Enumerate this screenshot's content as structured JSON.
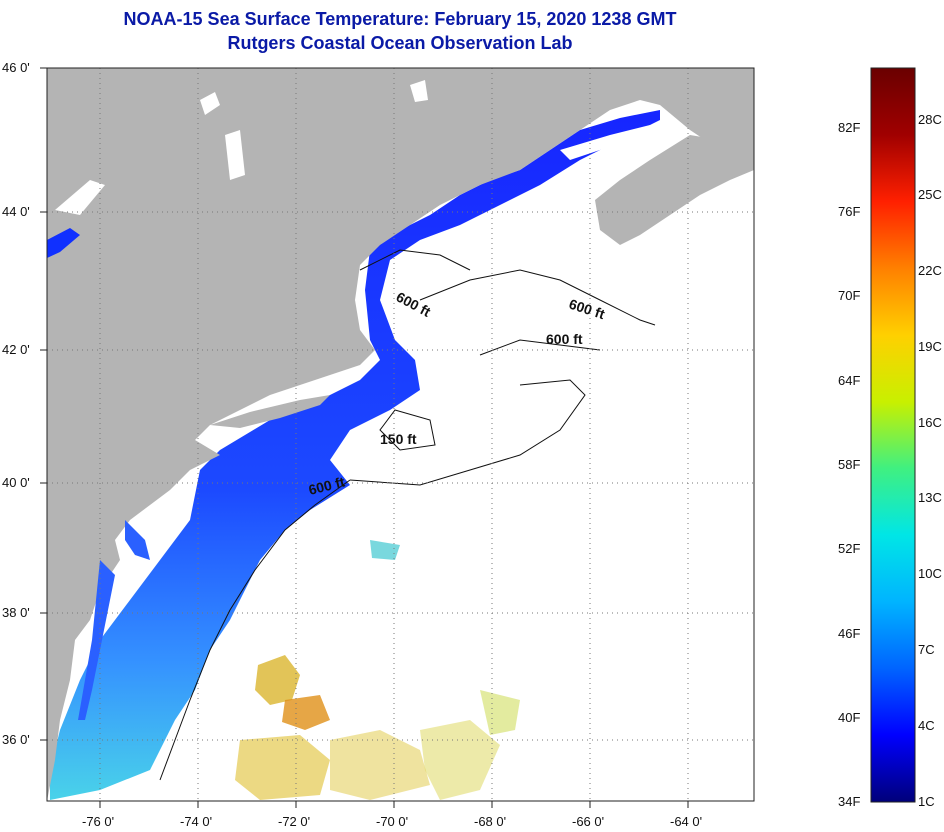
{
  "title": {
    "line1": "NOAA-15 Sea Surface Temperature:  February 15, 2020 1238 GMT",
    "line2": "Rutgers Coastal Ocean Observation Lab"
  },
  "map": {
    "lon_ticks": [
      "-76 0'",
      "-74 0'",
      "-72 0'",
      "-70 0'",
      "-68 0'",
      "-66 0'",
      "-64 0'"
    ],
    "lat_ticks": [
      "46 0'",
      "44 0'",
      "42 0'",
      "40 0'",
      "38 0'",
      "36 0'"
    ],
    "contour_labels": [
      "600 ft",
      "600 ft",
      "600 ft",
      "150 ft",
      "600 ft"
    ],
    "colors": {
      "land": "#b4b4b4",
      "ocean_nodata": "#ffffff",
      "cold": "#0a1aff",
      "mid": "#1f7fff",
      "warm": "#e0c020",
      "hot": "#e08a10"
    }
  },
  "colorbar": {
    "fahrenheit": [
      "82F",
      "76F",
      "70F",
      "64F",
      "58F",
      "52F",
      "46F",
      "40F",
      "34F"
    ],
    "celsius": [
      "28C",
      "25C",
      "22C",
      "19C",
      "16C",
      "13C",
      "10C",
      "7C",
      "4C",
      "1C"
    ],
    "stops": [
      "#00007a",
      "#0000ff",
      "#0064ff",
      "#00b4ff",
      "#00e6e6",
      "#40f080",
      "#c8f000",
      "#ffd000",
      "#ff8000",
      "#ff2000",
      "#a00000",
      "#6a0000"
    ]
  }
}
